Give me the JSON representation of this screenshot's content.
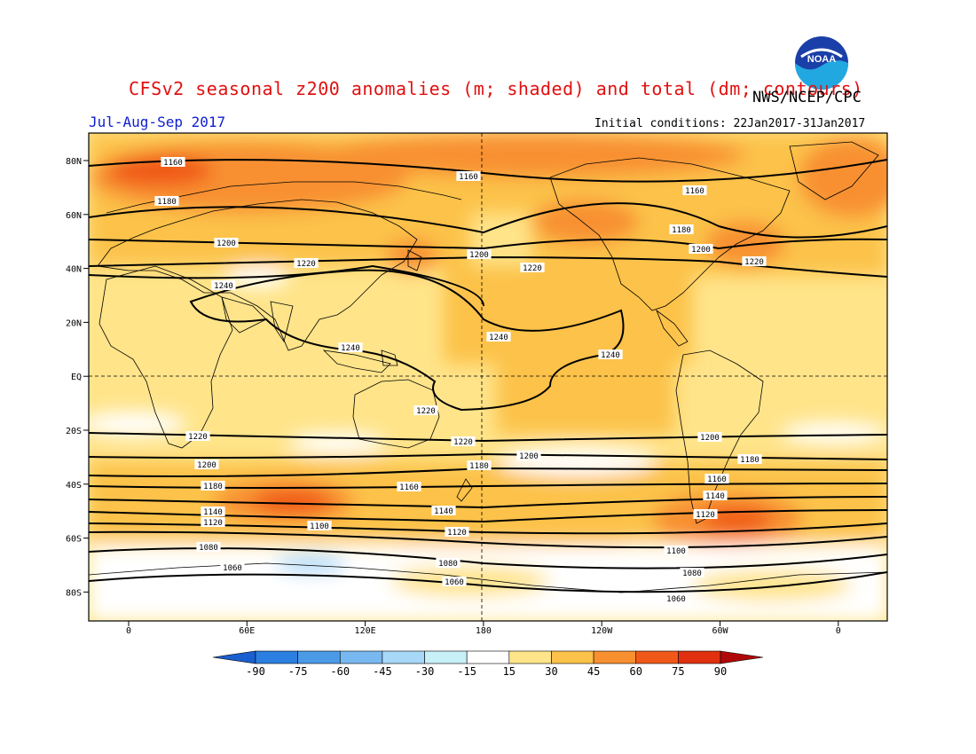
{
  "header": {
    "title": "CFSv2 seasonal z200 anomalies (m; shaded) and total (dm; contours)",
    "agency": "NWS/NCEP/CPC",
    "season": "Jul-Aug-Sep 2017",
    "initial_conditions": "Initial conditions: 22Jan2017-31Jan2017",
    "logo_text": "NOAA"
  },
  "axes": {
    "lat_labels": [
      "80N",
      "60N",
      "40N",
      "20N",
      "EQ",
      "20S",
      "40S",
      "60S",
      "80S"
    ],
    "lon_labels": [
      "0",
      "60E",
      "120E",
      "180",
      "120W",
      "60W",
      "0"
    ]
  },
  "contour_labels": [
    "1160",
    "1160",
    "1160",
    "1180",
    "1180",
    "1200",
    "1200",
    "1200",
    "1220",
    "1220",
    "1220",
    "1240",
    "1240",
    "1240",
    "1240",
    "1220",
    "1220",
    "1220",
    "1200",
    "1200",
    "1200",
    "1180",
    "1180",
    "1180",
    "1160",
    "1160",
    "1140",
    "1140",
    "1140",
    "1120",
    "1120",
    "1120",
    "1100",
    "1100",
    "1080",
    "1080",
    "1080",
    "1060",
    "1060",
    "1060"
  ],
  "colorbar": {
    "ticks": [
      "-90",
      "-75",
      "-60",
      "-45",
      "-30",
      "-15",
      "15",
      "30",
      "45",
      "60",
      "75",
      "90"
    ],
    "colors": [
      "#1a5fd0",
      "#2b7fe0",
      "#4a9ae8",
      "#78b8f0",
      "#a8d8f8",
      "#c8f0f8",
      "#ffffff",
      "#ffe48a",
      "#fcc24a",
      "#f89030",
      "#f05818",
      "#e03010",
      "#b00808"
    ]
  },
  "colors": {
    "title": "#e01010",
    "season": "#1020d0",
    "land_outline": "#000000"
  }
}
